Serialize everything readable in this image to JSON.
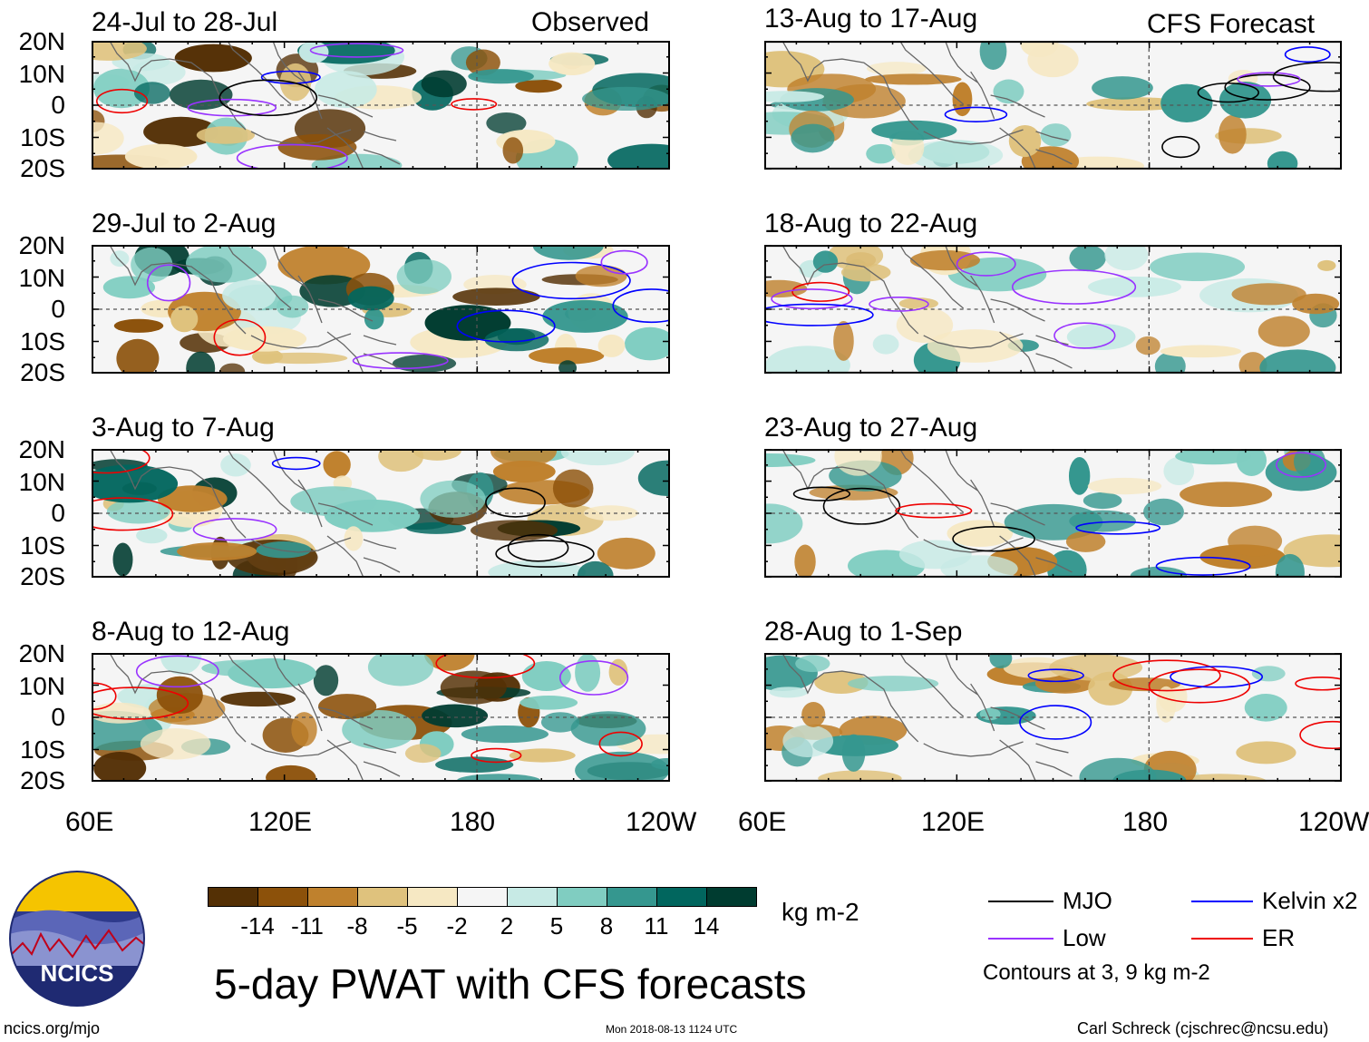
{
  "header": {
    "observed_label": "Observed",
    "forecast_label": "CFS Forecast"
  },
  "panels": [
    {
      "title": "24-Jul to 28-Jul"
    },
    {
      "title": "29-Jul to 2-Aug"
    },
    {
      "title": "3-Aug to 7-Aug"
    },
    {
      "title": "8-Aug to 12-Aug"
    },
    {
      "title": "13-Aug to 17-Aug"
    },
    {
      "title": "18-Aug to 22-Aug"
    },
    {
      "title": "23-Aug to 27-Aug"
    },
    {
      "title": "28-Aug to 1-Sep"
    }
  ],
  "axes": {
    "lat_labels": [
      "20N",
      "10N",
      "0",
      "10S",
      "20S"
    ],
    "lon_labels": [
      "60E",
      "120E",
      "180",
      "120W"
    ],
    "lat_range": [
      -20,
      20
    ],
    "lon_range": [
      60,
      240
    ]
  },
  "colorbar": {
    "labels": [
      "-14",
      "-11",
      "-8",
      "-5",
      "-2",
      "2",
      "5",
      "8",
      "11",
      "14"
    ],
    "unit": "kg m-2",
    "colors": [
      "#543005",
      "#8c510a",
      "#bf812d",
      "#dfc27d",
      "#f6e8c3",
      "#f5f5f5",
      "#c7eae5",
      "#80cdc1",
      "#35978f",
      "#01665e",
      "#003c30"
    ]
  },
  "legend": {
    "mjo": {
      "label": "MJO",
      "color": "#000000"
    },
    "kelvin": {
      "label": "Kelvin x2",
      "color": "#0000ff"
    },
    "low": {
      "label": "Low",
      "color": "#9933ff"
    },
    "er": {
      "label": "ER",
      "color": "#ee0000"
    },
    "note": "Contours at 3, 9 kg m-2"
  },
  "title": "5-day PWAT with CFS forecasts",
  "footer": {
    "url": "ncics.org/mjo",
    "timestamp": "Mon 2018-08-13 1124 UTC",
    "author": "Carl Schreck (cjschrec@ncsu.edu)",
    "logo_text": "NCICS"
  }
}
